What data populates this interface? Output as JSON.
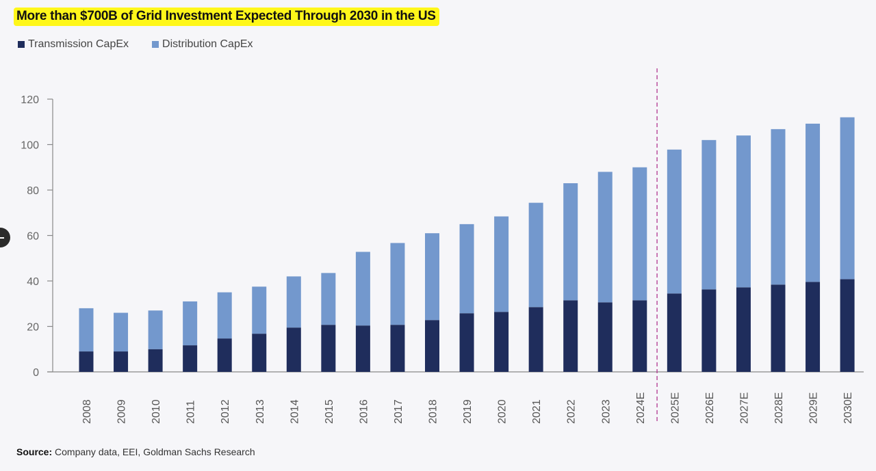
{
  "chart_data": {
    "type": "bar",
    "stacked": true,
    "title": "More than $700B of Grid Investment Expected Through 2030 in the US",
    "xlabel": "",
    "ylabel": "",
    "ylim": [
      0,
      120
    ],
    "yticks": [
      0,
      20,
      40,
      60,
      80,
      100,
      120
    ],
    "grid": false,
    "legend_placement": "top-left",
    "categories": [
      "2008",
      "2009",
      "2010",
      "2011",
      "2012",
      "2013",
      "2014",
      "2015",
      "2016",
      "2017",
      "2018",
      "2019",
      "2020",
      "2021",
      "2022",
      "2023",
      "2024E",
      "2025E",
      "2026E",
      "2027E",
      "2028E",
      "2029E",
      "2030E"
    ],
    "series": [
      {
        "name": "Transmission CapEx",
        "color": "#1f2d5c",
        "values": [
          9,
          9,
          10,
          11.7,
          14.7,
          16.8,
          19.5,
          20.7,
          20.4,
          20.7,
          22.8,
          25.8,
          26.4,
          28.5,
          31.5,
          30.6,
          31.5,
          34.5,
          36.3,
          37.2,
          38.4,
          39.6,
          40.8
        ]
      },
      {
        "name": "Distribution CapEx",
        "color": "#7398cd",
        "values": [
          19,
          17,
          17,
          19.3,
          20.3,
          20.7,
          22.5,
          22.8,
          32.4,
          36,
          38.2,
          39.2,
          42,
          45.9,
          51.5,
          57.4,
          58.5,
          63.3,
          65.7,
          66.8,
          68.4,
          69.6,
          71.2
        ]
      }
    ],
    "annotations": [
      {
        "type": "vertical-dashed-line",
        "between": [
          "2024E",
          "2025E"
        ],
        "color": "#b0358f"
      }
    ]
  },
  "source": {
    "label": "Source:",
    "text": " Company data, EEI, Goldman Sachs Research"
  }
}
